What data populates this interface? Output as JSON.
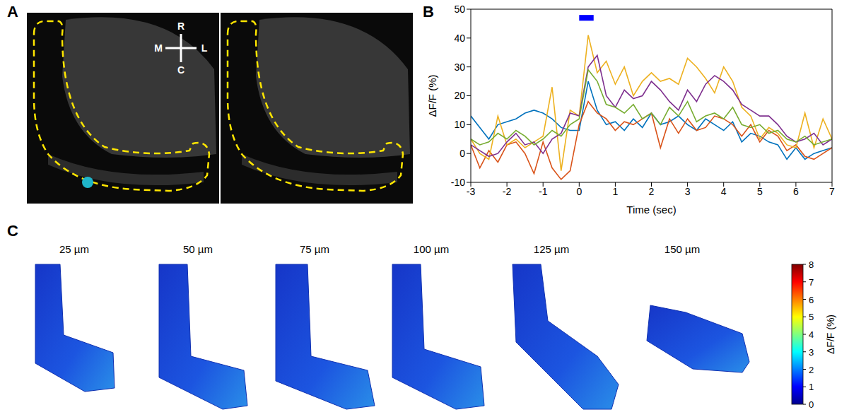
{
  "chart_data": {
    "type": "line",
    "letter": "B",
    "x_label": "Time (sec)",
    "y_label": "ΔF/F (%)",
    "x": [
      -3,
      -2.75,
      -2.5,
      -2.25,
      -2,
      -1.75,
      -1.5,
      -1.25,
      -1,
      -0.75,
      -0.5,
      -0.25,
      0,
      0.25,
      0.5,
      0.75,
      1,
      1.25,
      1.5,
      1.75,
      2,
      2.25,
      2.5,
      2.75,
      3,
      3.25,
      3.5,
      3.75,
      4,
      4.25,
      4.5,
      4.75,
      5,
      5.25,
      5.5,
      5.75,
      6,
      6.25,
      6.5,
      6.75,
      7
    ],
    "series": [
      {
        "color": "#0072bd",
        "values": [
          13,
          9,
          5,
          10,
          11,
          12,
          14,
          15,
          14,
          12,
          9,
          8,
          8,
          25,
          15,
          10,
          11,
          8,
          12,
          9,
          14,
          10,
          11,
          13,
          10,
          8,
          12,
          10,
          8,
          11,
          4,
          7,
          6,
          4,
          3,
          -2,
          2,
          -2,
          0,
          1,
          2
        ]
      },
      {
        "color": "#d95319",
        "values": [
          3,
          -5,
          1,
          -3,
          3,
          4,
          0,
          -7,
          4,
          -5,
          -9,
          -6,
          10,
          18,
          14,
          12,
          8,
          11,
          10,
          12,
          14,
          2,
          12,
          7,
          12,
          8,
          9,
          13,
          12,
          10,
          6,
          10,
          4,
          8,
          6,
          1,
          3,
          -1,
          -2,
          0,
          2
        ]
      },
      {
        "color": "#edb120",
        "values": [
          5,
          0,
          -2,
          13,
          3,
          5,
          2,
          4,
          6,
          23,
          -6,
          15,
          13,
          41,
          28,
          32,
          24,
          30,
          20,
          25,
          28,
          25,
          26,
          24,
          33,
          30,
          26,
          21,
          30,
          25,
          16,
          13,
          5,
          9,
          7,
          3,
          2,
          14,
          2,
          12,
          5
        ]
      },
      {
        "color": "#7e2f8e",
        "values": [
          3,
          1,
          -1,
          0,
          4,
          7,
          3,
          4,
          0,
          5,
          7,
          14,
          13,
          30,
          34,
          20,
          16,
          22,
          19,
          20,
          25,
          22,
          18,
          15,
          22,
          18,
          24,
          27,
          25,
          22,
          17,
          15,
          13,
          13,
          10,
          6,
          4,
          5,
          7,
          3,
          5
        ]
      },
      {
        "color": "#77ac30",
        "values": [
          5,
          3,
          4,
          7,
          5,
          8,
          6,
          3,
          5,
          8,
          6,
          10,
          12,
          29,
          25,
          17,
          16,
          14,
          17,
          12,
          14,
          10,
          16,
          13,
          18,
          11,
          13,
          14,
          12,
          16,
          10,
          9,
          10,
          7,
          8,
          5,
          4,
          6,
          3,
          4,
          5
        ]
      }
    ],
    "stimulus": {
      "x": [
        0,
        0.4
      ],
      "y": [
        46,
        48
      ],
      "color": "#0000ff"
    },
    "xlim": [
      -3,
      7
    ],
    "xticks": [
      -3,
      -2,
      -1,
      0,
      1,
      2,
      3,
      4,
      5,
      6,
      7
    ],
    "ylim": [
      -10,
      50
    ],
    "yticks": [
      -10,
      0,
      10,
      20,
      30,
      40,
      50
    ],
    "grid": false
  },
  "panel_A": {
    "letter": "A",
    "compass": {
      "up": "R",
      "down": "C",
      "left": "M",
      "right": "L"
    }
  },
  "panel_C": {
    "letter": "C",
    "depths": [
      "25 µm",
      "50 µm",
      "75 µm",
      "100 µm",
      "125 µm",
      "150 µm"
    ],
    "colorbar": {
      "label": "ΔF/F (%)",
      "range": [
        0,
        8
      ],
      "ticks": [
        0,
        1,
        2,
        3,
        4,
        5,
        6,
        7,
        8
      ]
    }
  }
}
